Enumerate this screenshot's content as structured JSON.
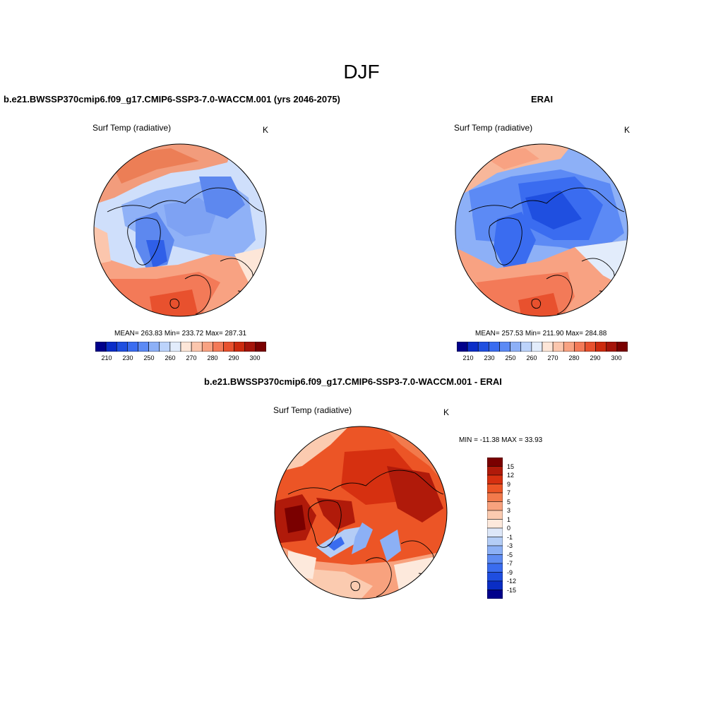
{
  "figure": {
    "season": "DJF",
    "panels": [
      {
        "id": "model",
        "title": "b.e21.BWSSP370cmip6.f09_g17.CMIP6-SSP3-7.0-WACCM.001 (yrs 2046-2075)",
        "variable": "Surf Temp (radiative)",
        "units": "K",
        "stats": "MEAN= 263.83  Min= 233.72  Max= 287.31",
        "colorbar_ticks": [
          "210",
          "230",
          "250",
          "260",
          "270",
          "280",
          "290",
          "300"
        ]
      },
      {
        "id": "obs",
        "title": "ERAI",
        "variable": "Surf Temp (radiative)",
        "units": "K",
        "stats": "MEAN= 257.53  Min= 211.90  Max= 284.88",
        "colorbar_ticks": [
          "210",
          "230",
          "250",
          "260",
          "270",
          "280",
          "290",
          "300"
        ]
      },
      {
        "id": "diff",
        "title": "b.e21.BWSSP370cmip6.f09_g17.CMIP6-SSP3-7.0-WACCM.001 - ERAI",
        "variable": "Surf Temp (radiative)",
        "units": "K",
        "stats": "MIN = -11.38 MAX =  33.93",
        "colorbar_ticks": [
          "15",
          "12",
          "9",
          "7",
          "5",
          "3",
          "1",
          "0",
          "-1",
          "-3",
          "-5",
          "-7",
          "-9",
          "-12",
          "-15"
        ]
      }
    ]
  },
  "colors": {
    "abs_scale": [
      "#00008b",
      "#0a2dc8",
      "#1f4fe0",
      "#3a6cf0",
      "#5c8af5",
      "#8db0f7",
      "#bcd3fb",
      "#e2ecfb",
      "#fde6d8",
      "#fbc6ad",
      "#f8a282",
      "#f37a58",
      "#e8512e",
      "#cc2a0e",
      "#a5140a",
      "#7a0000"
    ],
    "diff_scale": [
      "#7a0000",
      "#b01a0a",
      "#d63010",
      "#ec5526",
      "#f27a4c",
      "#f8a27e",
      "#fbcbb0",
      "#fde9dc",
      "#dde7f8",
      "#b4cdf6",
      "#8cb0f5",
      "#5f8cf2",
      "#3a6cef",
      "#1f4ee0",
      "#0a2dc4",
      "#00008b"
    ],
    "land_outline": "#000000"
  }
}
